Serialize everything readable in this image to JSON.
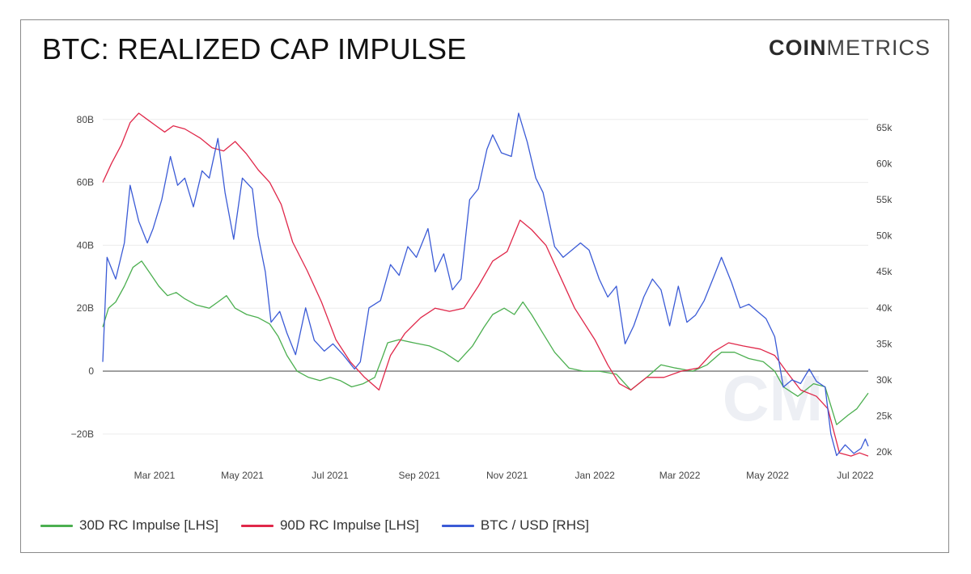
{
  "header": {
    "title": "BTC: REALIZED CAP IMPULSE",
    "brand_bold": "COIN",
    "brand_light": "METRICS",
    "watermark": "CM"
  },
  "legend": [
    {
      "label": "30D RC Impulse [LHS]",
      "color": "#4caf50"
    },
    {
      "label": "90D RC Impulse [LHS]",
      "color": "#e0284a"
    },
    {
      "label": "BTC / USD [RHS]",
      "color": "#3b5bd6"
    }
  ],
  "chart_data": {
    "type": "line",
    "x_range": [
      "2021-01-24",
      "2022-07-10"
    ],
    "x_tick_labels": [
      {
        "label": "Mar 2021",
        "date": "2021-03-01"
      },
      {
        "label": "May 2021",
        "date": "2021-05-01"
      },
      {
        "label": "Jul 2021",
        "date": "2021-07-01"
      },
      {
        "label": "Sep 2021",
        "date": "2021-09-01"
      },
      {
        "label": "Nov 2021",
        "date": "2021-11-01"
      },
      {
        "label": "Jan 2022",
        "date": "2022-01-01"
      },
      {
        "label": "Mar 2022",
        "date": "2022-03-01"
      },
      {
        "label": "May 2022",
        "date": "2022-05-01"
      },
      {
        "label": "Jul 2022",
        "date": "2022-07-01"
      }
    ],
    "y_left": {
      "range": [
        -28,
        82
      ],
      "ticks": [
        {
          "value": 80,
          "label": "80B"
        },
        {
          "value": 60,
          "label": "60B"
        },
        {
          "value": 40,
          "label": "40B"
        },
        {
          "value": 20,
          "label": "20B"
        },
        {
          "value": 0,
          "label": "0"
        },
        {
          "value": -20,
          "label": "−20B"
        }
      ]
    },
    "y_right": {
      "range": [
        19000,
        67000
      ],
      "ticks": [
        {
          "value": 65000,
          "label": "65k"
        },
        {
          "value": 60000,
          "label": "60k"
        },
        {
          "value": 55000,
          "label": "55k"
        },
        {
          "value": 50000,
          "label": "50k"
        },
        {
          "value": 45000,
          "label": "45k"
        },
        {
          "value": 40000,
          "label": "40k"
        },
        {
          "value": 35000,
          "label": "35k"
        },
        {
          "value": 30000,
          "label": "30k"
        },
        {
          "value": 25000,
          "label": "25k"
        },
        {
          "value": 20000,
          "label": "20k"
        }
      ]
    },
    "series": [
      {
        "name": "30D RC Impulse [LHS]",
        "axis": "left",
        "color": "#4caf50",
        "points": [
          [
            "2021-01-24",
            14
          ],
          [
            "2021-01-28",
            20
          ],
          [
            "2021-02-02",
            22
          ],
          [
            "2021-02-08",
            27
          ],
          [
            "2021-02-14",
            33
          ],
          [
            "2021-02-20",
            35
          ],
          [
            "2021-02-26",
            31
          ],
          [
            "2021-03-04",
            27
          ],
          [
            "2021-03-10",
            24
          ],
          [
            "2021-03-16",
            25
          ],
          [
            "2021-03-22",
            23
          ],
          [
            "2021-03-30",
            21
          ],
          [
            "2021-04-08",
            20
          ],
          [
            "2021-04-14",
            22
          ],
          [
            "2021-04-20",
            24
          ],
          [
            "2021-04-26",
            20
          ],
          [
            "2021-05-04",
            18
          ],
          [
            "2021-05-12",
            17
          ],
          [
            "2021-05-20",
            15
          ],
          [
            "2021-05-26",
            11
          ],
          [
            "2021-06-01",
            5
          ],
          [
            "2021-06-08",
            0
          ],
          [
            "2021-06-16",
            -2
          ],
          [
            "2021-06-24",
            -3
          ],
          [
            "2021-07-01",
            -2
          ],
          [
            "2021-07-08",
            -3
          ],
          [
            "2021-07-16",
            -5
          ],
          [
            "2021-07-24",
            -4
          ],
          [
            "2021-08-01",
            -2
          ],
          [
            "2021-08-06",
            4
          ],
          [
            "2021-08-10",
            9
          ],
          [
            "2021-08-18",
            10
          ],
          [
            "2021-08-28",
            9
          ],
          [
            "2021-09-08",
            8
          ],
          [
            "2021-09-18",
            6
          ],
          [
            "2021-09-28",
            3
          ],
          [
            "2021-10-08",
            8
          ],
          [
            "2021-10-16",
            14
          ],
          [
            "2021-10-22",
            18
          ],
          [
            "2021-10-30",
            20
          ],
          [
            "2021-11-06",
            18
          ],
          [
            "2021-11-12",
            22
          ],
          [
            "2021-11-18",
            18
          ],
          [
            "2021-11-26",
            12
          ],
          [
            "2021-12-04",
            6
          ],
          [
            "2021-12-14",
            1
          ],
          [
            "2021-12-24",
            0
          ],
          [
            "2022-01-04",
            0
          ],
          [
            "2022-01-16",
            -1
          ],
          [
            "2022-01-26",
            -6
          ],
          [
            "2022-02-06",
            -2
          ],
          [
            "2022-02-16",
            2
          ],
          [
            "2022-02-26",
            1
          ],
          [
            "2022-03-10",
            0
          ],
          [
            "2022-03-20",
            2
          ],
          [
            "2022-03-30",
            6
          ],
          [
            "2022-04-08",
            6
          ],
          [
            "2022-04-18",
            4
          ],
          [
            "2022-04-28",
            3
          ],
          [
            "2022-05-06",
            0
          ],
          [
            "2022-05-12",
            -5
          ],
          [
            "2022-05-22",
            -8
          ],
          [
            "2022-06-02",
            -4
          ],
          [
            "2022-06-10",
            -5
          ],
          [
            "2022-06-18",
            -17
          ],
          [
            "2022-06-26",
            -14
          ],
          [
            "2022-07-02",
            -12
          ],
          [
            "2022-07-10",
            -7
          ]
        ]
      },
      {
        "name": "90D RC Impulse [LHS]",
        "axis": "left",
        "color": "#e0284a",
        "points": [
          [
            "2021-01-24",
            60
          ],
          [
            "2021-01-30",
            66
          ],
          [
            "2021-02-06",
            72
          ],
          [
            "2021-02-12",
            79
          ],
          [
            "2021-02-18",
            82
          ],
          [
            "2021-02-24",
            80
          ],
          [
            "2021-03-02",
            78
          ],
          [
            "2021-03-08",
            76
          ],
          [
            "2021-03-14",
            78
          ],
          [
            "2021-03-22",
            77
          ],
          [
            "2021-04-02",
            74
          ],
          [
            "2021-04-10",
            71
          ],
          [
            "2021-04-18",
            70
          ],
          [
            "2021-04-26",
            73
          ],
          [
            "2021-05-04",
            69
          ],
          [
            "2021-05-12",
            64
          ],
          [
            "2021-05-20",
            60
          ],
          [
            "2021-05-28",
            53
          ],
          [
            "2021-06-05",
            41
          ],
          [
            "2021-06-15",
            32
          ],
          [
            "2021-06-25",
            22
          ],
          [
            "2021-07-05",
            10
          ],
          [
            "2021-07-15",
            3
          ],
          [
            "2021-07-25",
            -2
          ],
          [
            "2021-08-04",
            -6
          ],
          [
            "2021-08-12",
            5
          ],
          [
            "2021-08-22",
            12
          ],
          [
            "2021-09-02",
            17
          ],
          [
            "2021-09-12",
            20
          ],
          [
            "2021-09-22",
            19
          ],
          [
            "2021-10-02",
            20
          ],
          [
            "2021-10-12",
            27
          ],
          [
            "2021-10-22",
            35
          ],
          [
            "2021-11-01",
            38
          ],
          [
            "2021-11-10",
            48
          ],
          [
            "2021-11-18",
            45
          ],
          [
            "2021-11-28",
            40
          ],
          [
            "2021-12-08",
            30
          ],
          [
            "2021-12-18",
            20
          ],
          [
            "2022-01-01",
            10
          ],
          [
            "2022-01-10",
            2
          ],
          [
            "2022-01-18",
            -4
          ],
          [
            "2022-01-26",
            -6
          ],
          [
            "2022-02-06",
            -2
          ],
          [
            "2022-02-18",
            -2
          ],
          [
            "2022-03-02",
            0
          ],
          [
            "2022-03-14",
            1
          ],
          [
            "2022-03-24",
            6
          ],
          [
            "2022-04-04",
            9
          ],
          [
            "2022-04-14",
            8
          ],
          [
            "2022-04-26",
            7
          ],
          [
            "2022-05-06",
            5
          ],
          [
            "2022-05-14",
            0
          ],
          [
            "2022-05-24",
            -6
          ],
          [
            "2022-06-04",
            -8
          ],
          [
            "2022-06-12",
            -12
          ],
          [
            "2022-06-20",
            -26
          ],
          [
            "2022-06-28",
            -27
          ],
          [
            "2022-07-04",
            -26
          ],
          [
            "2022-07-10",
            -27
          ]
        ]
      },
      {
        "name": "BTC / USD [RHS]",
        "axis": "right",
        "color": "#3b5bd6",
        "points": [
          [
            "2021-01-24",
            32500
          ],
          [
            "2021-01-27",
            47000
          ],
          [
            "2021-02-02",
            44000
          ],
          [
            "2021-02-08",
            49000
          ],
          [
            "2021-02-12",
            57000
          ],
          [
            "2021-02-18",
            52000
          ],
          [
            "2021-02-24",
            49000
          ],
          [
            "2021-02-28",
            51000
          ],
          [
            "2021-03-06",
            55000
          ],
          [
            "2021-03-12",
            61000
          ],
          [
            "2021-03-17",
            57000
          ],
          [
            "2021-03-22",
            58000
          ],
          [
            "2021-03-28",
            54000
          ],
          [
            "2021-04-03",
            59000
          ],
          [
            "2021-04-08",
            58000
          ],
          [
            "2021-04-14",
            63500
          ],
          [
            "2021-04-19",
            56000
          ],
          [
            "2021-04-25",
            49500
          ],
          [
            "2021-05-01",
            58000
          ],
          [
            "2021-05-08",
            56500
          ],
          [
            "2021-05-12",
            50000
          ],
          [
            "2021-05-17",
            45000
          ],
          [
            "2021-05-21",
            38000
          ],
          [
            "2021-05-27",
            39500
          ],
          [
            "2021-06-01",
            36500
          ],
          [
            "2021-06-07",
            33500
          ],
          [
            "2021-06-14",
            40000
          ],
          [
            "2021-06-20",
            35500
          ],
          [
            "2021-06-27",
            34000
          ],
          [
            "2021-07-03",
            35000
          ],
          [
            "2021-07-10",
            33500
          ],
          [
            "2021-07-18",
            31500
          ],
          [
            "2021-07-22",
            32500
          ],
          [
            "2021-07-28",
            40000
          ],
          [
            "2021-08-05",
            41000
          ],
          [
            "2021-08-12",
            46000
          ],
          [
            "2021-08-18",
            44500
          ],
          [
            "2021-08-24",
            48500
          ],
          [
            "2021-08-30",
            47000
          ],
          [
            "2021-09-07",
            51000
          ],
          [
            "2021-09-12",
            45000
          ],
          [
            "2021-09-18",
            47500
          ],
          [
            "2021-09-24",
            42500
          ],
          [
            "2021-09-30",
            44000
          ],
          [
            "2021-10-06",
            55000
          ],
          [
            "2021-10-12",
            56500
          ],
          [
            "2021-10-18",
            62000
          ],
          [
            "2021-10-22",
            64000
          ],
          [
            "2021-10-28",
            61500
          ],
          [
            "2021-11-04",
            61000
          ],
          [
            "2021-11-09",
            67000
          ],
          [
            "2021-11-15",
            63000
          ],
          [
            "2021-11-21",
            58000
          ],
          [
            "2021-11-26",
            56000
          ],
          [
            "2021-12-04",
            48500
          ],
          [
            "2021-12-10",
            47000
          ],
          [
            "2021-12-16",
            48000
          ],
          [
            "2021-12-22",
            49000
          ],
          [
            "2021-12-28",
            48000
          ],
          [
            "2022-01-04",
            44000
          ],
          [
            "2022-01-10",
            41500
          ],
          [
            "2022-01-16",
            43000
          ],
          [
            "2022-01-22",
            35000
          ],
          [
            "2022-01-28",
            37500
          ],
          [
            "2022-02-04",
            41500
          ],
          [
            "2022-02-10",
            44000
          ],
          [
            "2022-02-16",
            42500
          ],
          [
            "2022-02-22",
            37500
          ],
          [
            "2022-02-28",
            43000
          ],
          [
            "2022-03-06",
            38000
          ],
          [
            "2022-03-12",
            39000
          ],
          [
            "2022-03-18",
            41000
          ],
          [
            "2022-03-24",
            44000
          ],
          [
            "2022-03-30",
            47000
          ],
          [
            "2022-04-06",
            43500
          ],
          [
            "2022-04-12",
            40000
          ],
          [
            "2022-04-18",
            40500
          ],
          [
            "2022-04-24",
            39500
          ],
          [
            "2022-04-30",
            38500
          ],
          [
            "2022-05-06",
            36000
          ],
          [
            "2022-05-12",
            29000
          ],
          [
            "2022-05-18",
            30000
          ],
          [
            "2022-05-24",
            29500
          ],
          [
            "2022-05-30",
            31500
          ],
          [
            "2022-06-04",
            29800
          ],
          [
            "2022-06-10",
            29000
          ],
          [
            "2022-06-14",
            22500
          ],
          [
            "2022-06-18",
            19500
          ],
          [
            "2022-06-24",
            21000
          ],
          [
            "2022-06-30",
            19800
          ],
          [
            "2022-07-05",
            20500
          ],
          [
            "2022-07-08",
            21800
          ],
          [
            "2022-07-10",
            20800
          ]
        ]
      }
    ],
    "zero_line": 0
  }
}
